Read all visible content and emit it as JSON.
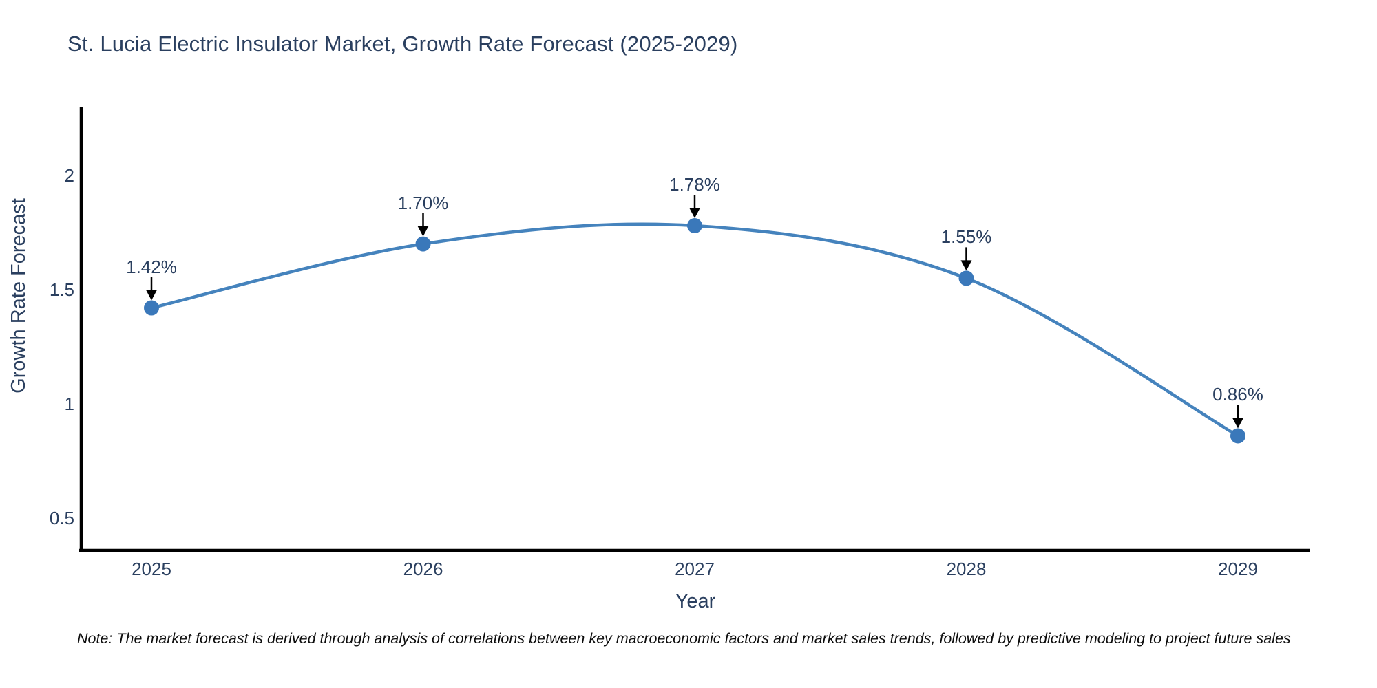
{
  "title": "St. Lucia Electric Insulator Market, Growth Rate Forecast (2025-2029)",
  "note": "Note: The market forecast is derived through analysis of correlations between key macroeconomic factors and market sales trends, followed by predictive modeling to project future sales",
  "chart_data": {
    "type": "line",
    "line_shape": "spline",
    "markers": true,
    "grid": false,
    "legend": false,
    "title": "St. Lucia Electric Insulator Market, Growth Rate Forecast (2025-2029)",
    "xlabel": "Year",
    "ylabel": "Growth Rate Forecast",
    "x": [
      2025,
      2026,
      2027,
      2028,
      2029
    ],
    "values": [
      1.42,
      1.7,
      1.78,
      1.55,
      0.86
    ],
    "point_labels": [
      "1.42%",
      "1.70%",
      "1.78%",
      "1.55%",
      "0.86%"
    ],
    "yticks": [
      0.5,
      1,
      1.5,
      2
    ],
    "ylim": [
      0.36,
      2.29
    ],
    "annotation_arrows": true
  },
  "colors": {
    "line": "#4583bd",
    "marker": "#3a78ba",
    "axis": "#000000",
    "arrow": "#000000",
    "text": "#2a3f5f",
    "note_text": "#0d0d0d",
    "background": "#ffffff"
  }
}
